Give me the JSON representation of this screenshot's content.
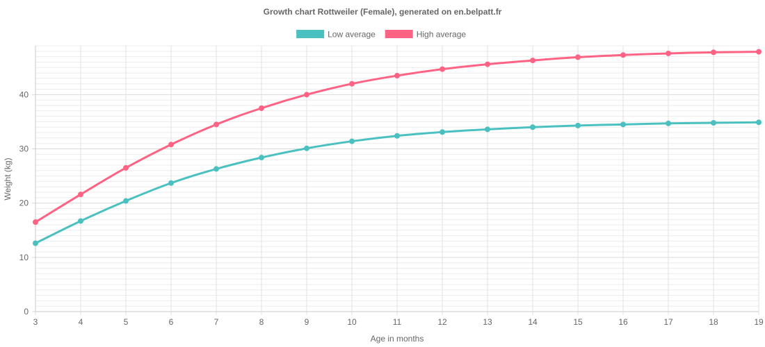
{
  "chart_data": {
    "type": "line",
    "title": "Growth chart Rottweiler (Female), generated on en.belpatt.fr",
    "xlabel": "Age in months",
    "ylabel": "Weight (kg)",
    "x": [
      3,
      4,
      5,
      6,
      7,
      8,
      9,
      10,
      11,
      12,
      13,
      14,
      15,
      16,
      17,
      18,
      19
    ],
    "xlim": [
      3,
      19
    ],
    "ylim": [
      0,
      49
    ],
    "y_ticks": [
      0,
      10,
      20,
      30,
      40
    ],
    "y_minor_step": 1,
    "grid": true,
    "legend_position": "top",
    "series": [
      {
        "name": "Low average",
        "color": "#4bc0c0",
        "values": [
          12.6,
          16.7,
          20.4,
          23.7,
          26.3,
          28.4,
          30.1,
          31.4,
          32.4,
          33.1,
          33.6,
          34.0,
          34.3,
          34.5,
          34.7,
          34.8,
          34.9
        ]
      },
      {
        "name": "High average",
        "color": "#ff6384",
        "values": [
          16.5,
          21.6,
          26.5,
          30.8,
          34.5,
          37.5,
          40.0,
          42.0,
          43.5,
          44.7,
          45.6,
          46.3,
          46.9,
          47.3,
          47.6,
          47.8,
          47.9
        ]
      }
    ]
  }
}
